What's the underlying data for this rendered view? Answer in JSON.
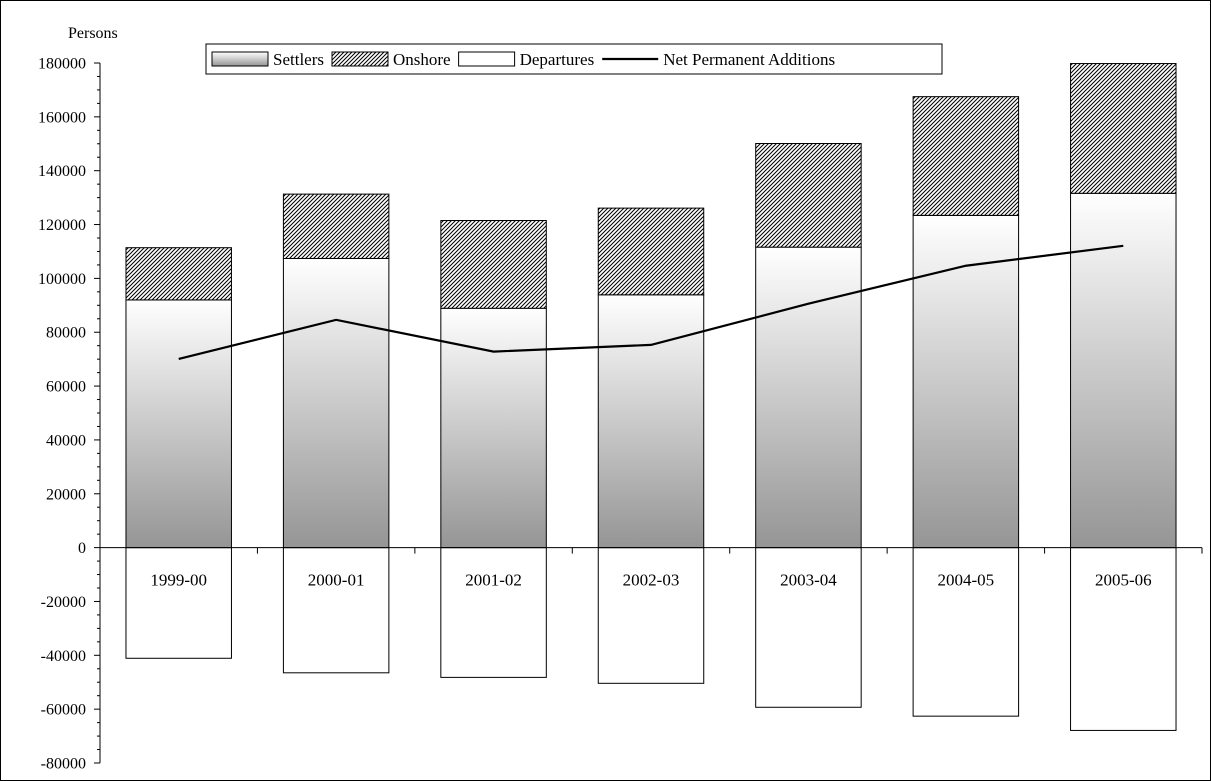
{
  "chart_data": {
    "type": "bar",
    "stacked": true,
    "ylabel": "Persons",
    "ylim": [
      -80000,
      180000
    ],
    "ytick_step": 20000,
    "yticks": [
      "180000",
      "160000",
      "140000",
      "120000",
      "100000",
      "80000",
      "60000",
      "40000",
      "20000",
      "0",
      "-20000",
      "-40000",
      "-60000",
      "-80000"
    ],
    "grid": false,
    "legend_position": "top",
    "categories": [
      "1999-00",
      "2000-01",
      "2001-02",
      "2002-03",
      "2003-04",
      "2004-05",
      "2005-06"
    ],
    "series": [
      {
        "name": "Settlers",
        "kind": "bar",
        "values": [
          92000,
          107400,
          88900,
          93900,
          111600,
          123400,
          131600
        ]
      },
      {
        "name": "Onshore",
        "kind": "bar",
        "values": [
          19400,
          23900,
          32600,
          32200,
          38500,
          44100,
          48200
        ]
      },
      {
        "name": "Departures",
        "kind": "bar",
        "values": [
          -41100,
          -46500,
          -48200,
          -50400,
          -59300,
          -62600,
          -67900
        ]
      },
      {
        "name": "Net Permanent Additions",
        "kind": "line",
        "values": [
          70100,
          84600,
          72800,
          75300,
          90600,
          104700,
          112100
        ]
      }
    ],
    "colors": {
      "settlers_top": "#ffffff",
      "settlers_bottom": "#959595",
      "onshore": "#000000",
      "departures": "#ffffff",
      "line": "#000000"
    }
  }
}
